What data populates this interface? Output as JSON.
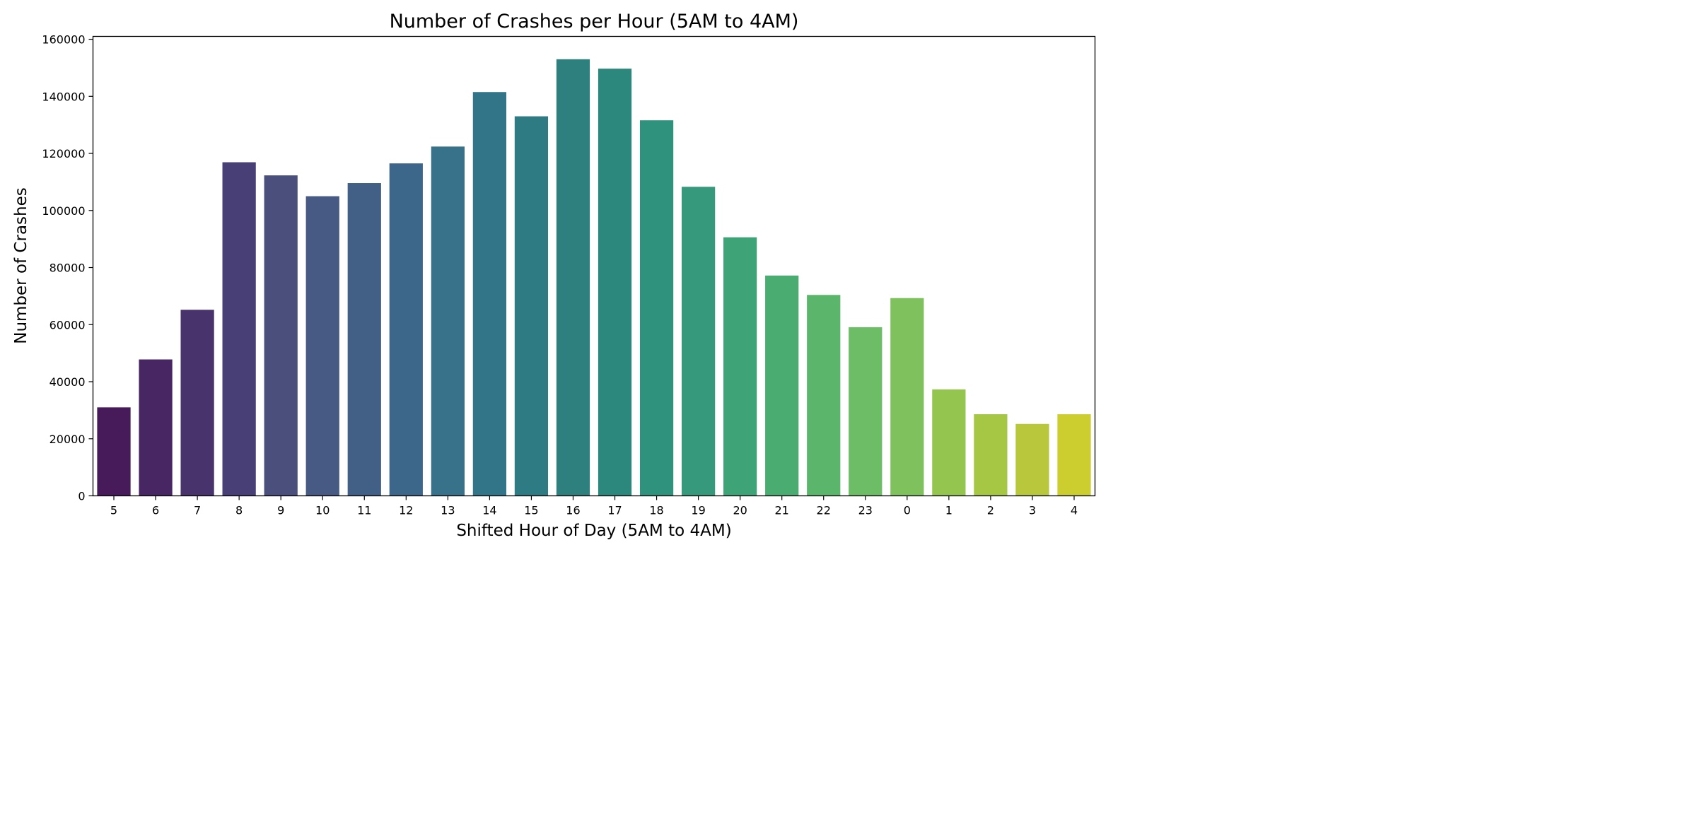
{
  "chart_data": {
    "type": "bar",
    "title": "Number of Crashes per Hour (5AM to 4AM)",
    "xlabel": "Shifted Hour of Day (5AM to 4AM)",
    "ylabel": "Number of Crashes",
    "categories": [
      "5",
      "6",
      "7",
      "8",
      "9",
      "10",
      "11",
      "12",
      "13",
      "14",
      "15",
      "16",
      "17",
      "18",
      "19",
      "20",
      "21",
      "22",
      "23",
      "0",
      "1",
      "2",
      "3",
      "4"
    ],
    "values": [
      31000,
      47800,
      65200,
      116900,
      112300,
      105000,
      109600,
      116500,
      122400,
      141500,
      133000,
      153000,
      149700,
      131600,
      108300,
      90600,
      77200,
      70400,
      59100,
      69300,
      37300,
      28600,
      25200,
      28600
    ],
    "yticks": [
      "0",
      "20000",
      "40000",
      "60000",
      "80000",
      "100000",
      "120000",
      "140000",
      "160000"
    ],
    "ylim": [
      0,
      161000
    ],
    "grid": false,
    "legend": "none",
    "colors": [
      "#471a59",
      "#482664",
      "#48336c",
      "#473f75",
      "#4a4f7c",
      "#465a83",
      "#425f86",
      "#3d678a",
      "#37718a",
      "#337588",
      "#2f7b84",
      "#2e807f",
      "#2c877d",
      "#2f927d",
      "#36997b",
      "#3ea377",
      "#4bac71",
      "#5bb56a",
      "#6dbd67",
      "#7fc25d",
      "#94c64f",
      "#a6c744",
      "#b8c73b",
      "#ccce2f"
    ]
  }
}
